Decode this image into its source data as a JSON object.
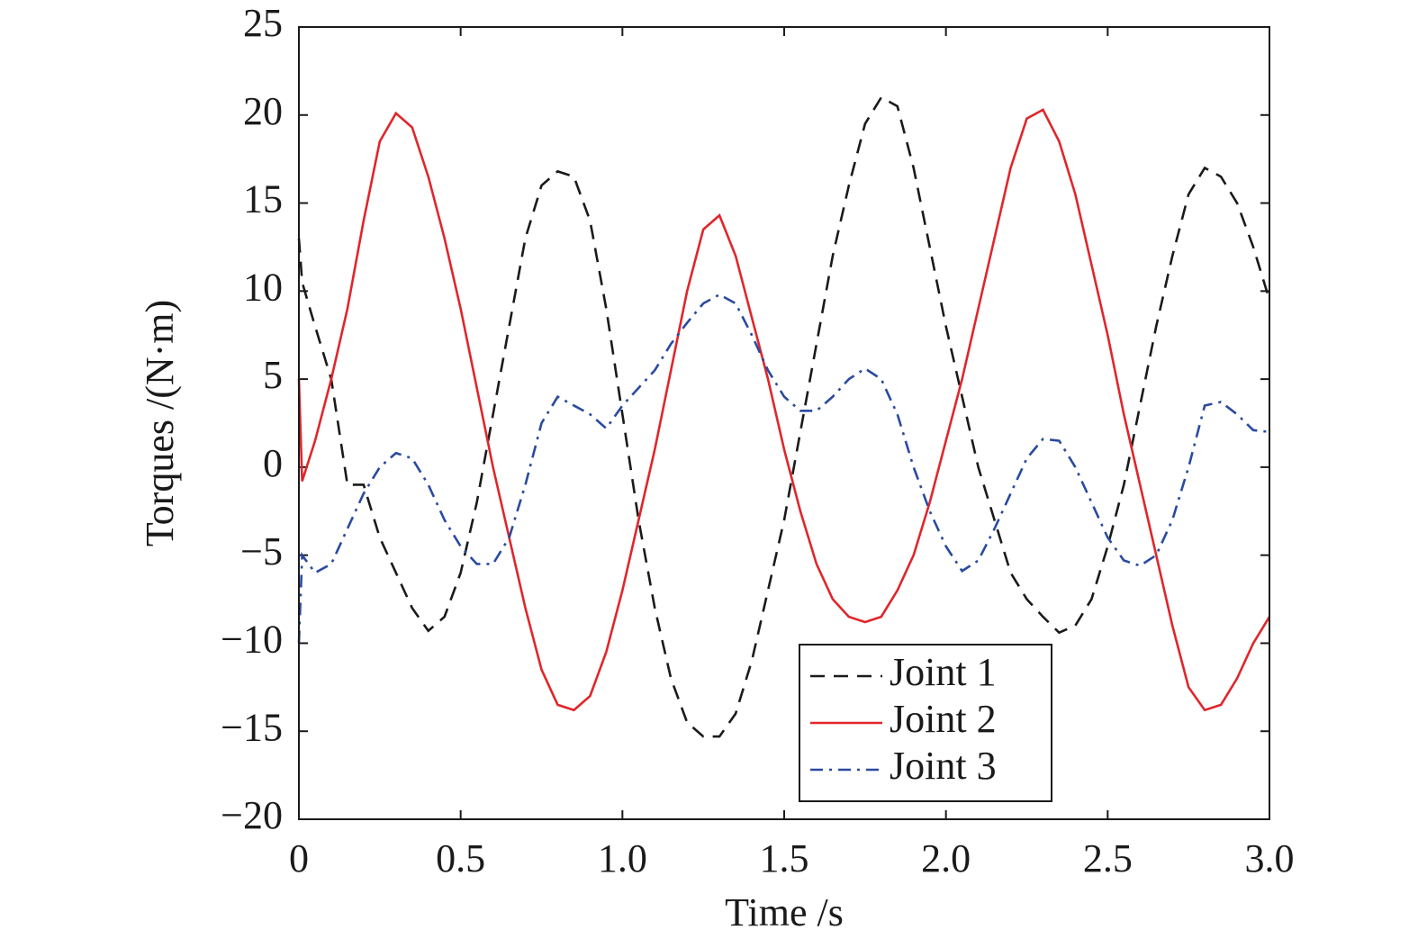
{
  "chart_data": {
    "type": "line",
    "x_label": "Time /s",
    "y_label": "Torques /(N·m)",
    "x": [
      0,
      0.01,
      0.05,
      0.1,
      0.15,
      0.2,
      0.25,
      0.3,
      0.35,
      0.4,
      0.45,
      0.5,
      0.55,
      0.6,
      0.65,
      0.7,
      0.75,
      0.8,
      0.85,
      0.9,
      0.95,
      1.0,
      1.05,
      1.1,
      1.15,
      1.2,
      1.25,
      1.3,
      1.35,
      1.4,
      1.45,
      1.5,
      1.55,
      1.6,
      1.65,
      1.7,
      1.75,
      1.8,
      1.85,
      1.9,
      1.95,
      2.0,
      2.05,
      2.1,
      2.15,
      2.2,
      2.25,
      2.3,
      2.35,
      2.4,
      2.45,
      2.5,
      2.55,
      2.6,
      2.65,
      2.7,
      2.75,
      2.8,
      2.85,
      2.9,
      2.95,
      3.0
    ],
    "series": [
      {
        "name": "Joint 1",
        "color": "#1a1a1a",
        "dash": "dashed",
        "values": [
          13,
          10.5,
          8,
          5,
          -1,
          -1,
          -4,
          -6,
          -8,
          -9.3,
          -8.5,
          -6,
          -2,
          3,
          8,
          13,
          16,
          16.8,
          16.5,
          14,
          9,
          3,
          -3,
          -8,
          -12,
          -14.5,
          -15.3,
          -15.3,
          -14,
          -11,
          -7,
          -3,
          2,
          7,
          12,
          16,
          19.5,
          21,
          20.5,
          17,
          12.5,
          8,
          4,
          0,
          -3,
          -6,
          -7.5,
          -8.5,
          -9.4,
          -9,
          -7.5,
          -4.5,
          -1,
          3.5,
          8,
          12,
          15.5,
          17,
          16.5,
          15,
          12.5,
          9.5
        ]
      },
      {
        "name": "Joint 2",
        "color": "#e0262b",
        "dash": "solid",
        "values": [
          5,
          -0.8,
          1.5,
          5,
          9,
          14,
          18.5,
          20.1,
          19.3,
          16.5,
          13,
          9,
          4.5,
          0,
          -4,
          -8,
          -11.5,
          -13.5,
          -13.8,
          -13,
          -10.5,
          -7,
          -3,
          1,
          5.5,
          10,
          13.5,
          14.3,
          12,
          8.5,
          5,
          1,
          -2.5,
          -5.5,
          -7.5,
          -8.5,
          -8.8,
          -8.5,
          -7,
          -5,
          -2,
          1.5,
          5,
          9,
          13,
          17,
          19.8,
          20.3,
          18.5,
          15.5,
          11.5,
          7.5,
          3,
          -1,
          -5,
          -9,
          -12.5,
          -13.8,
          -13.5,
          -12,
          -10,
          -8.5
        ]
      },
      {
        "name": "Joint 3",
        "color": "#2a4aa0",
        "dash": "dashdot",
        "values": [
          -10,
          -5,
          -6,
          -5.5,
          -3.5,
          -1.5,
          0,
          0.8,
          0.5,
          -1,
          -3,
          -4.5,
          -5.5,
          -5.5,
          -4,
          -1,
          2.5,
          4,
          3.5,
          3,
          2.2,
          3.5,
          4.5,
          5.5,
          7,
          8.2,
          9.3,
          9.8,
          9.3,
          7.5,
          5.5,
          4,
          3.2,
          3.2,
          4,
          5,
          5.6,
          5,
          3,
          0,
          -2.5,
          -4.5,
          -5.9,
          -5.3,
          -3.5,
          -1.5,
          0.5,
          1.6,
          1.5,
          0,
          -2,
          -4,
          -5.3,
          -5.6,
          -5,
          -3,
          0,
          3.5,
          3.7,
          3,
          2.1,
          2
        ]
      }
    ],
    "xlim": [
      0,
      3
    ],
    "xticks": [
      0,
      0.5,
      {
        "value": 1,
        "label": "1.0"
      },
      1.5,
      {
        "value": 2,
        "label": "2.0"
      },
      2.5,
      {
        "value": 3,
        "label": "3.0"
      }
    ],
    "ylim": [
      -20,
      25
    ],
    "yticks": [
      {
        "value": -20,
        "label": "−20"
      },
      {
        "value": -15,
        "label": "−15"
      },
      {
        "value": -10,
        "label": "−10"
      },
      {
        "value": -5,
        "label": "−5"
      },
      0,
      5,
      10,
      15,
      20,
      25
    ],
    "grid": false,
    "legend": "lower right"
  }
}
